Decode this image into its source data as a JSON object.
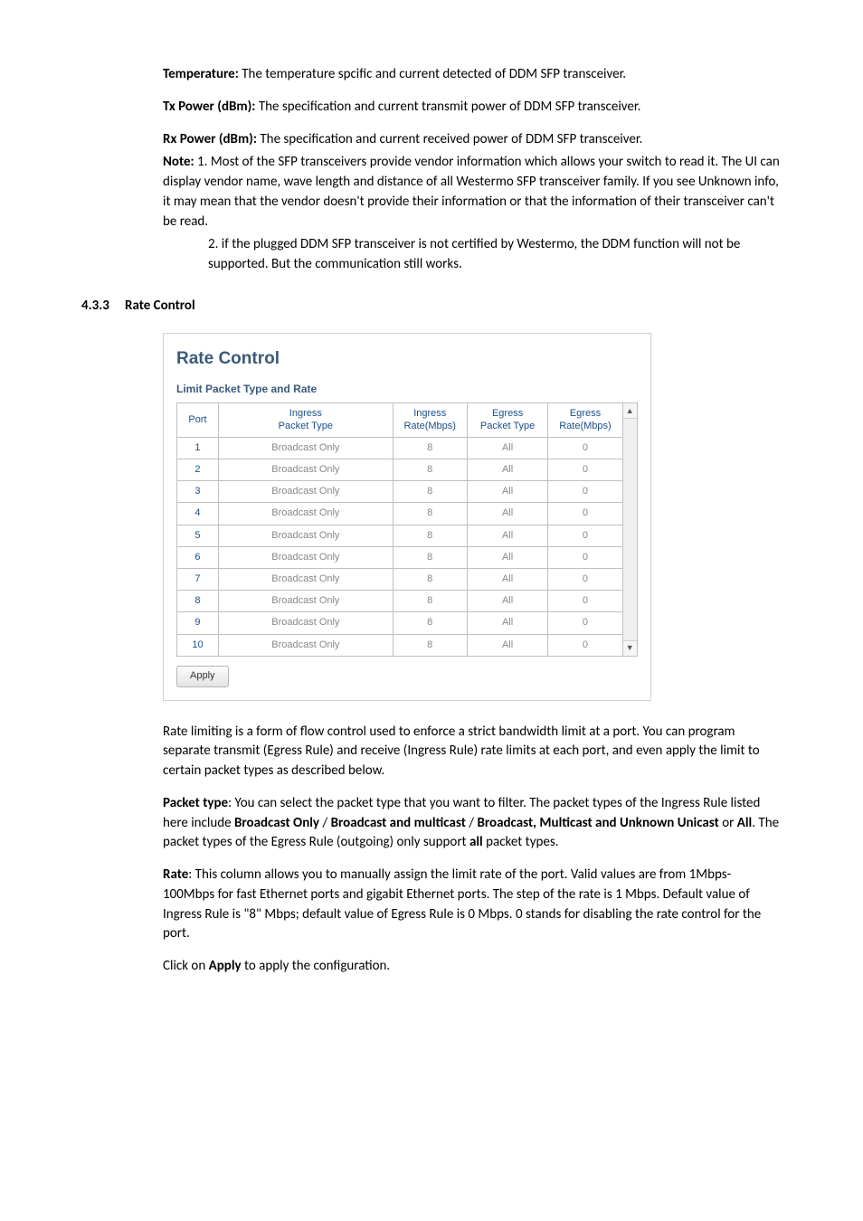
{
  "colors": {
    "text": "#000000",
    "bg": "#ffffff",
    "panel_border": "#d0d0d0",
    "panel_title": "#3a5a7a",
    "panel_sub": "#3a5a7a",
    "table_border": "#c0c0c0",
    "table_header_text": "#1a4f8a",
    "table_grey": "#888888"
  },
  "defs": {
    "temperature": {
      "label": "Temperature:",
      "text": " The temperature spcific and current detected of DDM SFP transceiver."
    },
    "tx_power": {
      "label": "Tx Power (dBm):",
      "text": " The specification and current transmit power of DDM SFP transceiver."
    },
    "rx_power": {
      "label": "Rx Power (dBm):",
      "text": " The specification and current received power of DDM SFP transceiver."
    }
  },
  "note": {
    "label": "Note:",
    "p1": " 1. Most of the SFP transceivers provide vendor information which allows your switch to read it. The UI can display vendor name, wave length and distance of all Westermo SFP transceiver family. If you see Unknown info, it may mean that the vendor doesn't provide their information or that the information of their transceiver can't be read.",
    "p2": "2. if the plugged DDM SFP transceiver is not certified by Westermo, the DDM function will not be supported. But the communication still works."
  },
  "section": {
    "num": "4.3.3",
    "title": "Rate Control"
  },
  "panel": {
    "title": "Rate Control",
    "subtitle": "Limit Packet Type and Rate",
    "headers": {
      "port": "Port",
      "ingress_type": "Ingress\nPacket Type",
      "ingress_rate": "Ingress\nRate(Mbps)",
      "egress_type": "Egress\nPacket Type",
      "egress_rate": "Egress\nRate(Mbps)"
    },
    "rows": [
      {
        "port": "1",
        "itype": "Broadcast Only",
        "irate": "8",
        "etype": "All",
        "erate": "0"
      },
      {
        "port": "2",
        "itype": "Broadcast Only",
        "irate": "8",
        "etype": "All",
        "erate": "0"
      },
      {
        "port": "3",
        "itype": "Broadcast Only",
        "irate": "8",
        "etype": "All",
        "erate": "0"
      },
      {
        "port": "4",
        "itype": "Broadcast Only",
        "irate": "8",
        "etype": "All",
        "erate": "0"
      },
      {
        "port": "5",
        "itype": "Broadcast Only",
        "irate": "8",
        "etype": "All",
        "erate": "0"
      },
      {
        "port": "6",
        "itype": "Broadcast Only",
        "irate": "8",
        "etype": "All",
        "erate": "0"
      },
      {
        "port": "7",
        "itype": "Broadcast Only",
        "irate": "8",
        "etype": "All",
        "erate": "0"
      },
      {
        "port": "8",
        "itype": "Broadcast Only",
        "irate": "8",
        "etype": "All",
        "erate": "0"
      },
      {
        "port": "9",
        "itype": "Broadcast Only",
        "irate": "8",
        "etype": "All",
        "erate": "0"
      },
      {
        "port": "10",
        "itype": "Broadcast Only",
        "irate": "8",
        "etype": "All",
        "erate": "0"
      }
    ],
    "apply_label": "Apply"
  },
  "body_paras": {
    "rate_limiting": "Rate limiting is a form of flow control used to enforce a strict bandwidth limit at a port. You can program separate transmit (Egress Rule) and receive (Ingress Rule) rate limits at each port, and even apply the limit to certain packet types as described below.",
    "packet_type": {
      "label": "Packet type",
      "t1": ": You can select the packet type that you want to filter. The packet types of the Ingress Rule listed here include ",
      "b1": "Broadcast Only",
      "sep1": " / ",
      "b2": "Broadcast and multicast",
      "sep2": " / ",
      "b3": "Broadcast, Multicast and Unknown Unicast",
      "or": " or ",
      "b4": "All",
      "t2": ". The packet types of the Egress Rule (outgoing) only support ",
      "b5": "all",
      "t3": " packet types."
    },
    "rate": {
      "label": "Rate",
      "text": ": This column allows you to manually assign the limit rate of the port. Valid values are from 1Mbps-100Mbps for fast Ethernet ports and gigabit Ethernet ports. The step of the rate is 1 Mbps. Default value of Ingress Rule is \"8\" Mbps; default value of Egress Rule is 0 Mbps. 0 stands for disabling the rate control for the port."
    },
    "apply": {
      "t1": "Click on ",
      "b1": "Apply",
      "t2": " to apply the configuration."
    }
  }
}
